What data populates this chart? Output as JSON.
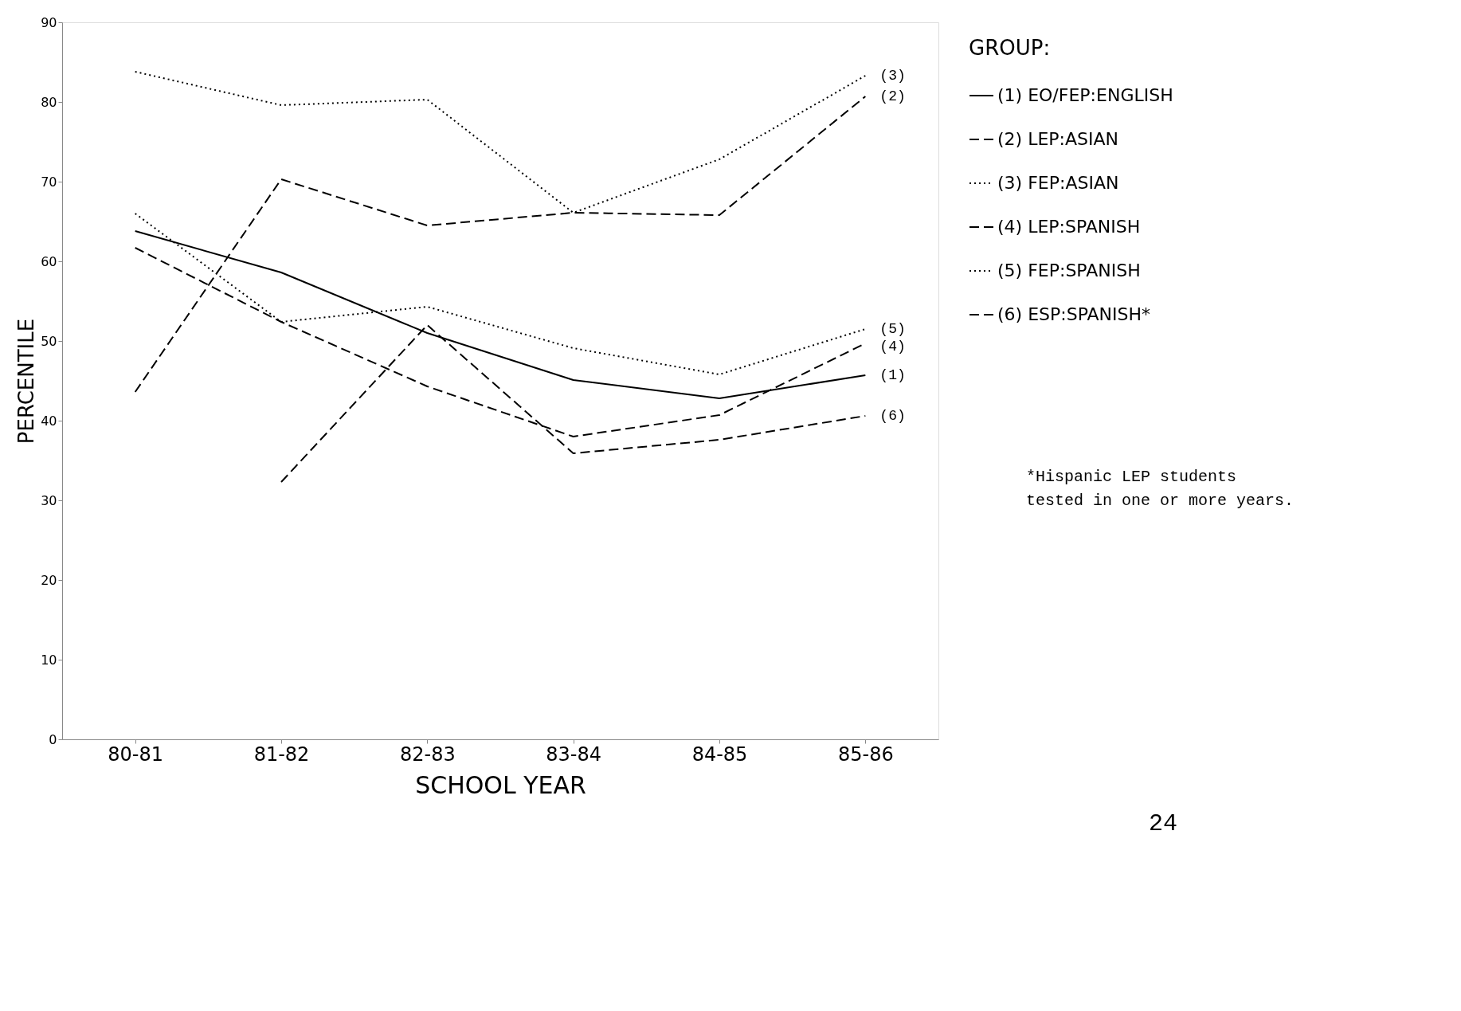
{
  "chart_data": {
    "type": "line",
    "xlabel": "SCHOOL YEAR",
    "ylabel": "PERCENTILE",
    "legend_title": "GROUP:",
    "legend": "right",
    "grid": false,
    "marker": "none",
    "categories": [
      "80-81",
      "81-82",
      "82-83",
      "83-84",
      "84-85",
      "85-86"
    ],
    "ylim": [
      0,
      90
    ],
    "yticks": [
      0,
      10,
      20,
      30,
      40,
      50,
      60,
      70,
      80,
      90
    ],
    "series": [
      {
        "name": "(1) EO/FEP:ENGLISH",
        "color": "#000000",
        "line_style": "solid",
        "values": [
          63.8,
          58.6,
          51,
          45.1,
          42.8,
          45.7
        ]
      },
      {
        "name": "(2) LEP:ASIAN",
        "color": "#000000",
        "line_style": "dashed",
        "values": [
          43.6,
          70.3,
          64.5,
          66.1,
          65.8,
          80.7
        ]
      },
      {
        "name": "(3) FEP:ASIAN",
        "color": "#000000",
        "line_style": "dotted",
        "values": [
          83.8,
          79.6,
          80.3,
          66.1,
          72.8,
          83.3
        ]
      },
      {
        "name": "(4) LEP:SPANISH",
        "color": "#000000",
        "line_style": "dashed",
        "values": [
          61.7,
          52.4,
          44.3,
          38,
          40.7,
          49.7
        ]
      },
      {
        "name": "(5) FEP:SPANISH",
        "color": "#000000",
        "line_style": "dotted",
        "values": [
          66,
          52.4,
          54.3,
          49.1,
          45.8,
          51.5
        ]
      },
      {
        "name": "(6) ESP:SPANISH*",
        "color": "#000000",
        "line_style": "dashed",
        "values": [
          null,
          32.3,
          52,
          35.9,
          37.6,
          40.6
        ]
      }
    ],
    "annotations": [
      {
        "text": "(3)",
        "x": "85-86",
        "y": 83.3
      },
      {
        "text": "(2)",
        "x": "85-86",
        "y": 80.7
      },
      {
        "text": "(5)",
        "x": "85-86",
        "y": 51.5
      },
      {
        "text": "(4)",
        "x": "85-86",
        "y": 49.3
      },
      {
        "text": "(1)",
        "x": "85-86",
        "y": 45.7
      },
      {
        "text": "(6)",
        "x": "85-86",
        "y": 40.6
      },
      "*Hispanic LEP students\ntested in one or more years.",
      "24"
    ]
  }
}
